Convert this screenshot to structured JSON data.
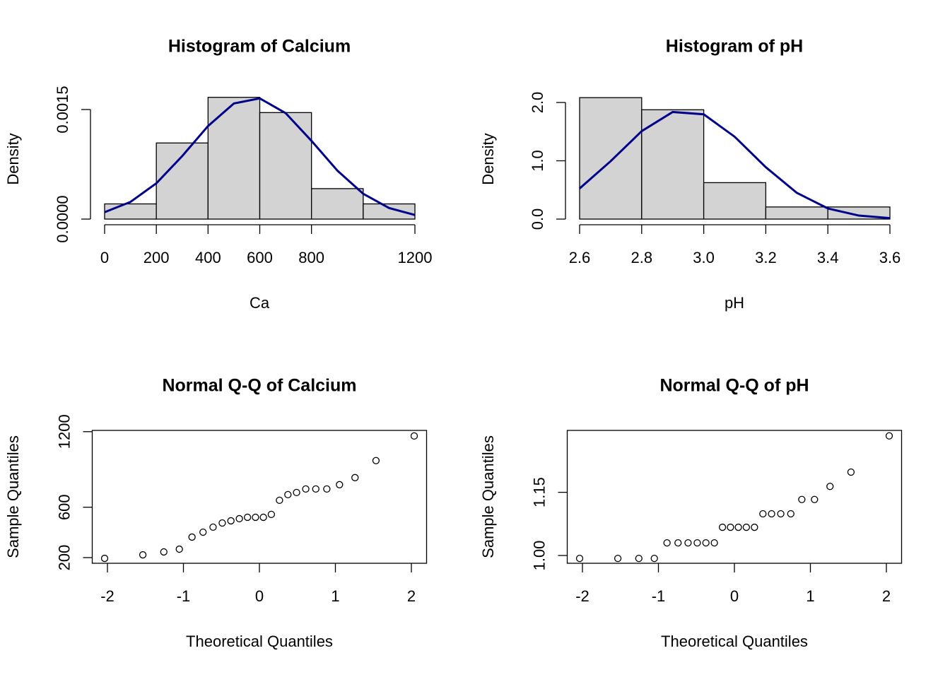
{
  "chart_data": [
    {
      "type": "histogram",
      "title": "Histogram of Calcium",
      "x_label": "Ca",
      "y_label": "Density",
      "bins": [
        0,
        200,
        400,
        600,
        800,
        1000,
        1200
      ],
      "values": [
        0.000208,
        0.001042,
        0.001667,
        0.001458,
        0.000417,
        0.000208
      ],
      "color": "#d3d3d3",
      "curve": {
        "color": "#00008b",
        "x": [
          0,
          100,
          200,
          300,
          400,
          500,
          600,
          700,
          800,
          900,
          1000,
          1100,
          1200
        ],
        "y": [
          9.4e-05,
          0.000235,
          0.00049,
          0.000862,
          0.001274,
          0.001583,
          0.001653,
          0.001451,
          0.001071,
          0.000664,
          0.000347,
          0.000152,
          5.6e-05
        ]
      },
      "xlim": [
        0,
        1200
      ],
      "ylim": [
        0,
        0.0017
      ],
      "xticks": [
        0,
        200,
        400,
        600,
        800,
        1200
      ],
      "yticks": [
        {
          "value": 0,
          "label": "0.0000"
        },
        {
          "value": 0.0015,
          "label": "0.0015"
        }
      ]
    },
    {
      "type": "histogram",
      "title": "Histogram of pH",
      "x_label": "pH",
      "y_label": "Density",
      "bins": [
        2.6,
        2.8,
        3.0,
        3.2,
        3.4,
        3.6
      ],
      "values": [
        2.083,
        1.875,
        0.625,
        0.208,
        0.208
      ],
      "color": "#d3d3d3",
      "curve": {
        "color": "#00008b",
        "x": [
          2.6,
          2.7,
          2.8,
          2.9,
          3.0,
          3.1,
          3.2,
          3.3,
          3.4,
          3.5,
          3.6
        ],
        "y": [
          0.525,
          0.993,
          1.508,
          1.837,
          1.797,
          1.411,
          0.89,
          0.45,
          0.183,
          0.06,
          0.016
        ]
      },
      "xlim": [
        2.6,
        3.6
      ],
      "ylim": [
        0,
        2.1
      ],
      "xticks": [
        2.6,
        2.8,
        {
          "value": 3.0,
          "label": "3.0"
        },
        3.2,
        3.4,
        3.6
      ],
      "yticks": [
        {
          "value": 0,
          "label": "0.0"
        },
        {
          "value": 1,
          "label": "1.0"
        },
        {
          "value": 2,
          "label": "2.0"
        }
      ]
    },
    {
      "type": "scatter",
      "title": "Normal Q-Q of Calcium",
      "x_label": "Theoretical Quantiles",
      "y_label": "Sample Quantiles",
      "x": [
        -2.037,
        -1.534,
        -1.258,
        -1.054,
        -0.887,
        -0.742,
        -0.61,
        -0.489,
        -0.375,
        -0.264,
        -0.157,
        -0.052,
        0.052,
        0.157,
        0.264,
        0.375,
        0.489,
        0.61,
        0.742,
        0.887,
        1.054,
        1.258,
        1.534,
        2.037
      ],
      "values": [
        194,
        222,
        245,
        267,
        363,
        402,
        442,
        475,
        492,
        509,
        520,
        520,
        520,
        543,
        655,
        700,
        717,
        745,
        745,
        745,
        779,
        835,
        970,
        1166
      ],
      "color": "#000000",
      "xlim": [
        -2.2,
        2.2
      ],
      "ylim": [
        155,
        1210
      ],
      "xticks": [
        -2,
        -1,
        0,
        1,
        2
      ],
      "yticks": [
        200,
        600,
        1200
      ]
    },
    {
      "type": "scatter",
      "title": "Normal Q-Q of pH",
      "x_label": "Theoretical Quantiles",
      "y_label": "Sample Quantiles",
      "x": [
        -2.037,
        -1.534,
        -1.258,
        -1.054,
        -0.887,
        -0.742,
        -0.61,
        -0.489,
        -0.375,
        -0.264,
        -0.157,
        -0.052,
        0.052,
        0.157,
        0.264,
        0.375,
        0.489,
        0.61,
        0.742,
        0.887,
        1.054,
        1.258,
        1.534,
        2.037
      ],
      "values": [
        0.993,
        0.993,
        0.993,
        0.993,
        1.03,
        1.03,
        1.03,
        1.03,
        1.03,
        1.03,
        1.067,
        1.067,
        1.067,
        1.067,
        1.067,
        1.099,
        1.099,
        1.099,
        1.099,
        1.133,
        1.133,
        1.164,
        1.198,
        1.284
      ],
      "color": "#000000",
      "xlim": [
        -2.2,
        2.2
      ],
      "ylim": [
        0.9815,
        1.297
      ],
      "xticks": [
        -2,
        -1,
        0,
        1,
        2
      ],
      "yticks": [
        {
          "value": 1,
          "label": "1.00"
        },
        1.15
      ]
    }
  ]
}
